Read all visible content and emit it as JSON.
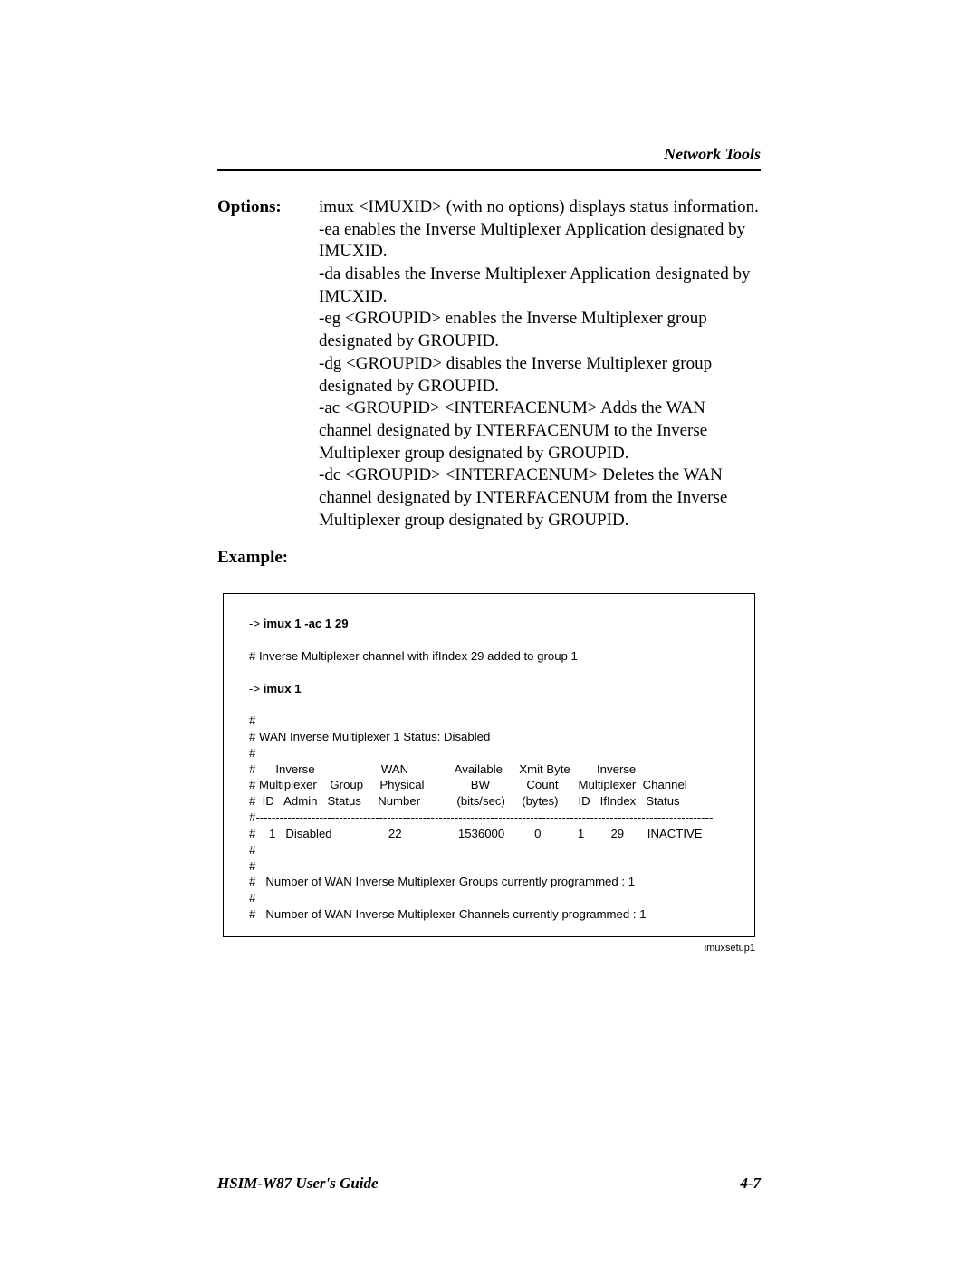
{
  "header": {
    "section_title": "Network Tools"
  },
  "options": {
    "label": "Options:",
    "lines": [
      "imux <IMUXID> (with no options) displays status information.",
      "-ea enables the Inverse Multiplexer Application designated by IMUXID.",
      "-da disables the Inverse Multiplexer Application designated by IMUXID.",
      "-eg <GROUPID> enables the Inverse Multiplexer group designated by GROUPID.",
      "-dg <GROUPID> disables the Inverse Multiplexer group designated by GROUPID.",
      "-ac <GROUPID> <INTERFACENUM> Adds the WAN channel designated by INTERFACENUM to the Inverse Multiplexer group designated by GROUPID.",
      "-dc <GROUPID> <INTERFACENUM> Deletes the WAN channel designated by INTERFACENUM from the Inverse Multiplexer group designated by GROUPID."
    ]
  },
  "example": {
    "label": "Example:",
    "prompt": "->",
    "cmd1": "imux 1 -ac 1 29",
    "line1": "# Inverse Multiplexer channel with ifIndex 29 added to group 1",
    "cmd2": "imux 1",
    "status_block": "#\n# WAN Inverse Multiplexer 1 Status: Disabled\n#",
    "table_header": "#      Inverse                    WAN              Available     Xmit Byte        Inverse\n# Multiplexer    Group     Physical              BW           Count      Multiplexer  Channel\n#  ID   Admin   Status     Number           (bits/sec)     (bytes)      ID   IfIndex   Status",
    "table_divider": "#-------------------------------------------------------------------------------------------------------------------",
    "table_row": "#    1   Disabled                 22                 1536000         0           1        29       INACTIVE",
    "footer_block": "#\n#\n#   Number of WAN Inverse Multiplexer Groups currently programmed : 1\n#\n#   Number of WAN Inverse Multiplexer Channels currently programmed : 1",
    "caption": "imuxsetup1"
  },
  "footer": {
    "left": "HSIM-W87 User's Guide",
    "right": "4-7"
  }
}
